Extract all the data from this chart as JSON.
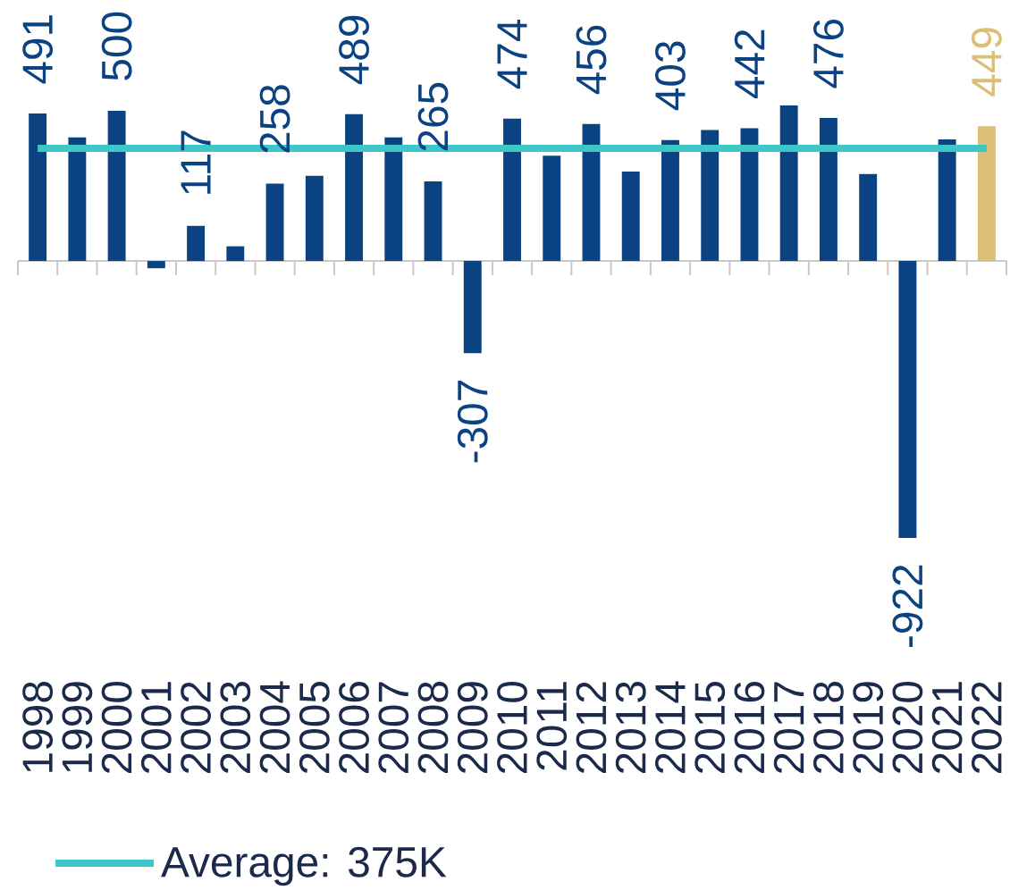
{
  "chart_data": {
    "type": "bar",
    "categories": [
      "1998",
      "1999",
      "2000",
      "2001",
      "2002",
      "2003",
      "2004",
      "2005",
      "2006",
      "2007",
      "2008",
      "2009",
      "2010",
      "2011",
      "2012",
      "2013",
      "2014",
      "2015",
      "2016",
      "2017",
      "2018",
      "2019",
      "2020",
      "2021",
      "2022"
    ],
    "values": [
      491,
      412,
      500,
      -24,
      117,
      49,
      258,
      284,
      489,
      412,
      265,
      -307,
      474,
      351,
      456,
      298,
      403,
      436,
      442,
      518,
      476,
      290,
      -922,
      405,
      449
    ],
    "colors": [
      "#0b4382",
      "#0b4382",
      "#0b4382",
      "#0b4382",
      "#0b4382",
      "#0b4382",
      "#0b4382",
      "#0b4382",
      "#0b4382",
      "#0b4382",
      "#0b4382",
      "#0b4382",
      "#0b4382",
      "#0b4382",
      "#0b4382",
      "#0b4382",
      "#0b4382",
      "#0b4382",
      "#0b4382",
      "#0b4382",
      "#0b4382",
      "#0b4382",
      "#0b4382",
      "#0b4382",
      "#d9bf77"
    ],
    "value_labels": [
      "491",
      null,
      "500",
      null,
      "117",
      null,
      "258",
      null,
      "489",
      null,
      "265",
      "-307",
      "474",
      null,
      "456",
      null,
      "403",
      null,
      "442",
      null,
      "476",
      null,
      "-922",
      null,
      "449"
    ],
    "ref_lines": [
      {
        "axis": "y",
        "value": 375,
        "label": "Average: 375K",
        "color": "#3ec6c8"
      }
    ],
    "legend": "bottom left"
  }
}
